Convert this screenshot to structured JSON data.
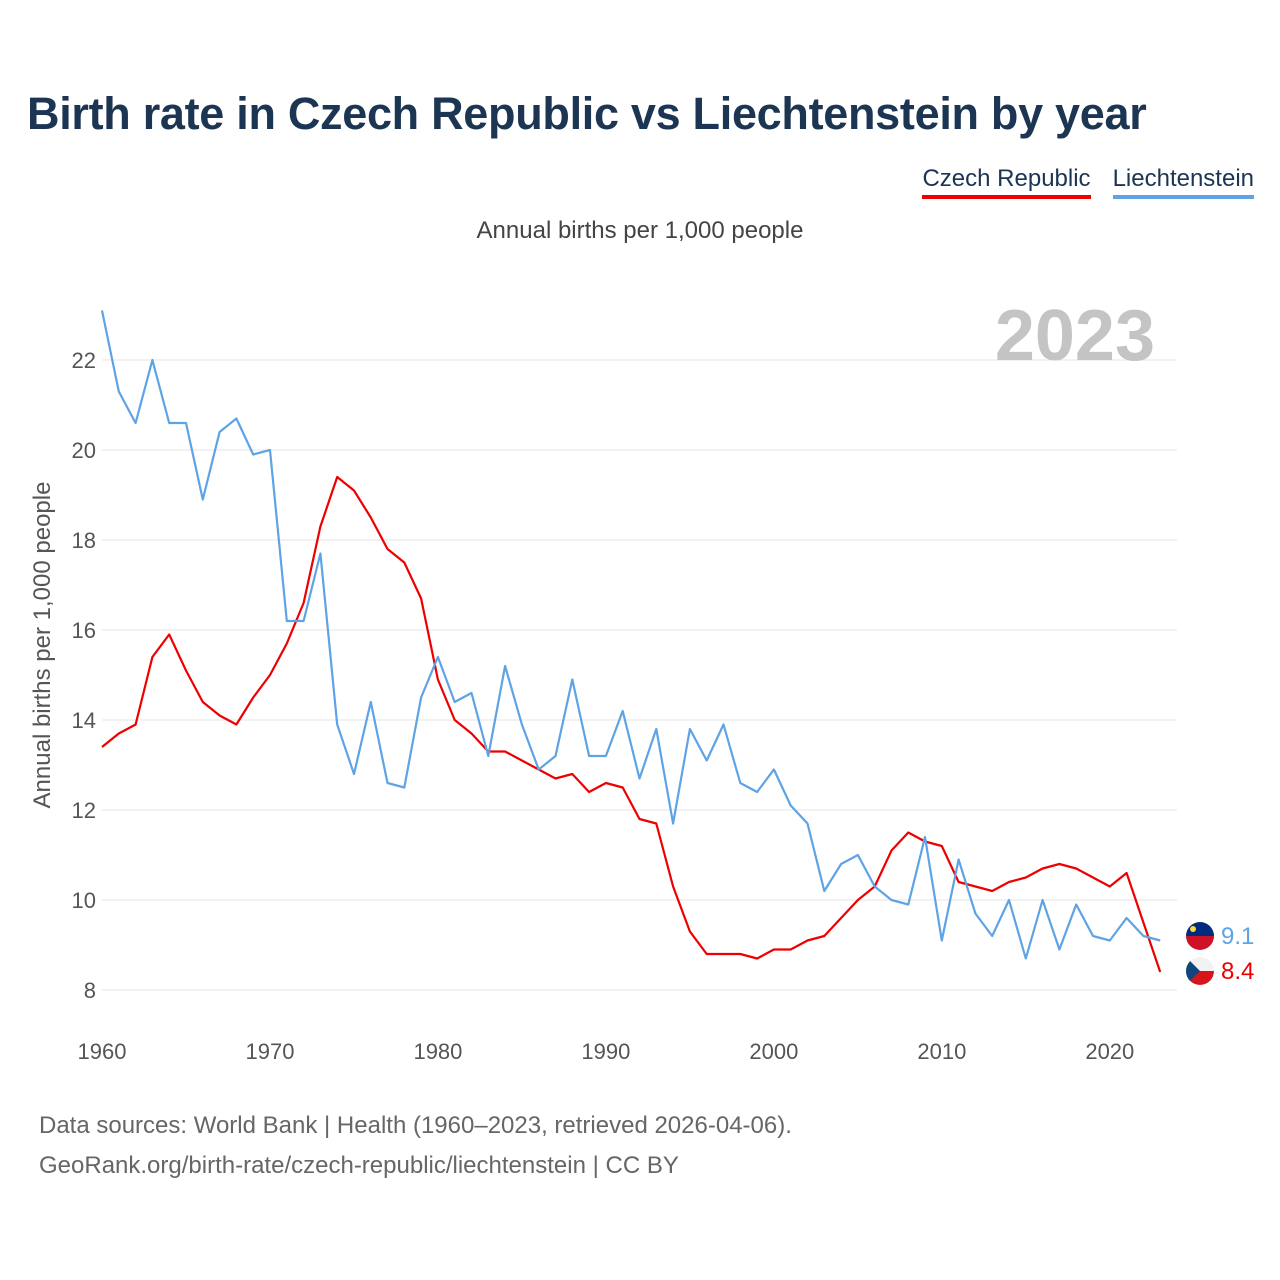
{
  "title": "Birth rate in Czech Republic vs Liechtenstein by year",
  "subtitle": "Annual births per 1,000 people",
  "legend": [
    {
      "label": "Czech Republic",
      "color": "#ee0000"
    },
    {
      "label": "Liechtenstein",
      "color": "#5ea3e6"
    }
  ],
  "year_label": "2023",
  "source": {
    "line1": "Data sources: World Bank | Health (1960–2023, retrieved 2026-04-06).",
    "line2": "GeoRank.org/birth-rate/czech-republic/liechtenstein | CC BY"
  },
  "chart_data": {
    "type": "line",
    "title": "Birth rate in Czech Republic vs Liechtenstein by year",
    "xlabel": "",
    "ylabel": "Annual births per 1,000 people",
    "xlim": [
      1960,
      2024
    ],
    "ylim": [
      7.5,
      23.1
    ],
    "xticks": [
      1960,
      1970,
      1980,
      1990,
      2000,
      2010,
      2020
    ],
    "yticks": [
      8,
      10,
      12,
      14,
      16,
      18,
      20,
      22
    ],
    "grid": true,
    "x": [
      1960,
      1961,
      1962,
      1963,
      1964,
      1965,
      1966,
      1967,
      1968,
      1969,
      1970,
      1971,
      1972,
      1973,
      1974,
      1975,
      1976,
      1977,
      1978,
      1979,
      1980,
      1981,
      1982,
      1983,
      1984,
      1985,
      1986,
      1987,
      1988,
      1989,
      1990,
      1991,
      1992,
      1993,
      1994,
      1995,
      1996,
      1997,
      1998,
      1999,
      2000,
      2001,
      2002,
      2003,
      2004,
      2005,
      2006,
      2007,
      2008,
      2009,
      2010,
      2011,
      2012,
      2013,
      2014,
      2015,
      2016,
      2017,
      2018,
      2019,
      2020,
      2021,
      2022,
      2023
    ],
    "series": [
      {
        "name": "Czech Republic",
        "color": "#ee0000",
        "values": [
          13.4,
          13.7,
          13.9,
          15.4,
          15.9,
          15.1,
          14.4,
          14.1,
          13.9,
          14.5,
          15.0,
          15.7,
          16.6,
          18.3,
          19.4,
          19.1,
          18.5,
          17.8,
          17.5,
          16.7,
          14.9,
          14.0,
          13.7,
          13.3,
          13.3,
          13.1,
          12.9,
          12.7,
          12.8,
          12.4,
          12.6,
          12.5,
          11.8,
          11.7,
          10.3,
          9.3,
          8.8,
          8.8,
          8.8,
          8.7,
          8.9,
          8.9,
          9.1,
          9.2,
          9.6,
          10.0,
          10.3,
          11.1,
          11.5,
          11.3,
          11.2,
          10.4,
          10.3,
          10.2,
          10.4,
          10.5,
          10.7,
          10.8,
          10.7,
          10.5,
          10.3,
          10.6,
          9.5,
          8.4
        ],
        "end_label": "8.4"
      },
      {
        "name": "Liechtenstein",
        "color": "#5ea3e6",
        "values": [
          23.1,
          21.3,
          20.6,
          22.0,
          20.6,
          20.6,
          18.9,
          20.4,
          20.7,
          19.9,
          20.0,
          16.2,
          16.2,
          17.7,
          13.9,
          12.8,
          14.4,
          12.6,
          12.5,
          14.5,
          15.4,
          14.4,
          14.6,
          13.2,
          15.2,
          13.9,
          12.9,
          13.2,
          14.9,
          13.2,
          13.2,
          14.2,
          12.7,
          13.8,
          11.7,
          13.8,
          13.1,
          13.9,
          12.6,
          12.4,
          12.9,
          12.1,
          11.7,
          10.2,
          10.8,
          11.0,
          10.3,
          10.0,
          9.9,
          11.4,
          9.1,
          10.9,
          9.7,
          9.2,
          10.0,
          8.7,
          10.0,
          8.9,
          9.9,
          9.2,
          9.1,
          9.6,
          9.2,
          9.1
        ],
        "end_label": "9.1"
      }
    ]
  }
}
